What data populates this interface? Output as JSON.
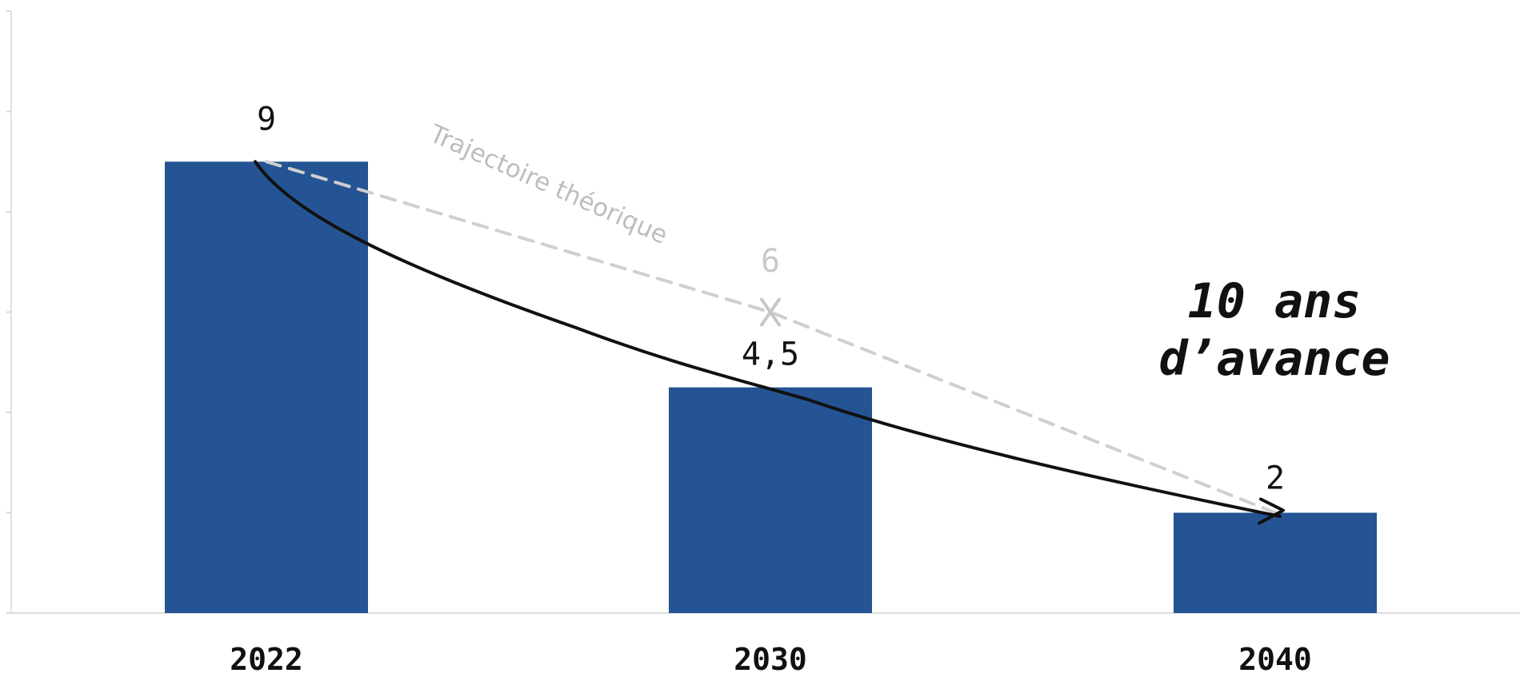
{
  "chart_data": {
    "type": "bar",
    "categories": [
      "2022",
      "2030",
      "2040"
    ],
    "values": [
      9,
      4.5,
      2
    ],
    "value_labels": [
      "9",
      "4,5",
      "2"
    ],
    "ylim": [
      0,
      12
    ],
    "grid": false,
    "bar_color": "#245493",
    "theoretical_trajectory": {
      "label": "Trajectoire théorique",
      "points": [
        {
          "x": "2022",
          "y": 9
        },
        {
          "x": "2030",
          "y": 6
        },
        {
          "x": "2040",
          "y": 2
        }
      ],
      "marker_label": "6",
      "color": "#cfcfcf"
    },
    "actual_curve": {
      "color": "#111111"
    },
    "annotation": {
      "line1": "10 ans",
      "line2": "d’avance"
    }
  }
}
